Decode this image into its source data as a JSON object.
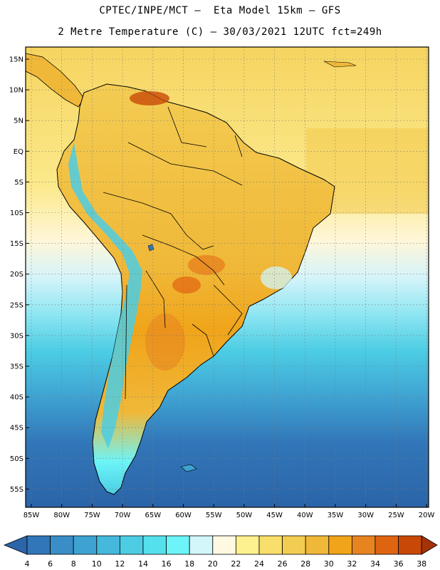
{
  "header": {
    "title_line1": "CPTEC/INPE/MCT –  Eta Model 15km – GFS",
    "title_line2": "2 Metre Temperature (C) – 30/03/2021 12UTC fct=249h"
  },
  "map": {
    "region": "South America",
    "lat_labels": [
      "15N",
      "10N",
      "5N",
      "EQ",
      "5S",
      "10S",
      "15S",
      "20S",
      "25S",
      "30S",
      "35S",
      "40S",
      "45S",
      "50S",
      "55S"
    ],
    "lon_labels": [
      "85W",
      "80W",
      "75W",
      "70W",
      "65W",
      "60W",
      "55W",
      "50W",
      "45W",
      "40W",
      "35W",
      "30W",
      "25W",
      "20W"
    ]
  },
  "colorbar": {
    "labels": [
      "4",
      "6",
      "8",
      "10",
      "12",
      "14",
      "16",
      "18",
      "20",
      "22",
      "24",
      "26",
      "28",
      "30",
      "32",
      "34",
      "36",
      "38"
    ],
    "colors": [
      "#2b64a8",
      "#3176b8",
      "#3a8dc6",
      "#3fa3d2",
      "#45b8dc",
      "#4ccde4",
      "#54e0ec",
      "#6cf4f8",
      "#d2f6fa",
      "#fff8e2",
      "#fdf08e",
      "#f8de6a",
      "#f3cc52",
      "#f0b838",
      "#f0a41a",
      "#e88420",
      "#df6410",
      "#c84808",
      "#a63208"
    ]
  },
  "colors": {
    "ocean_north": "#f3cc52",
    "ocean_south": "#2b64a8",
    "land_hot": "#f0a41a",
    "border": "#000000"
  }
}
